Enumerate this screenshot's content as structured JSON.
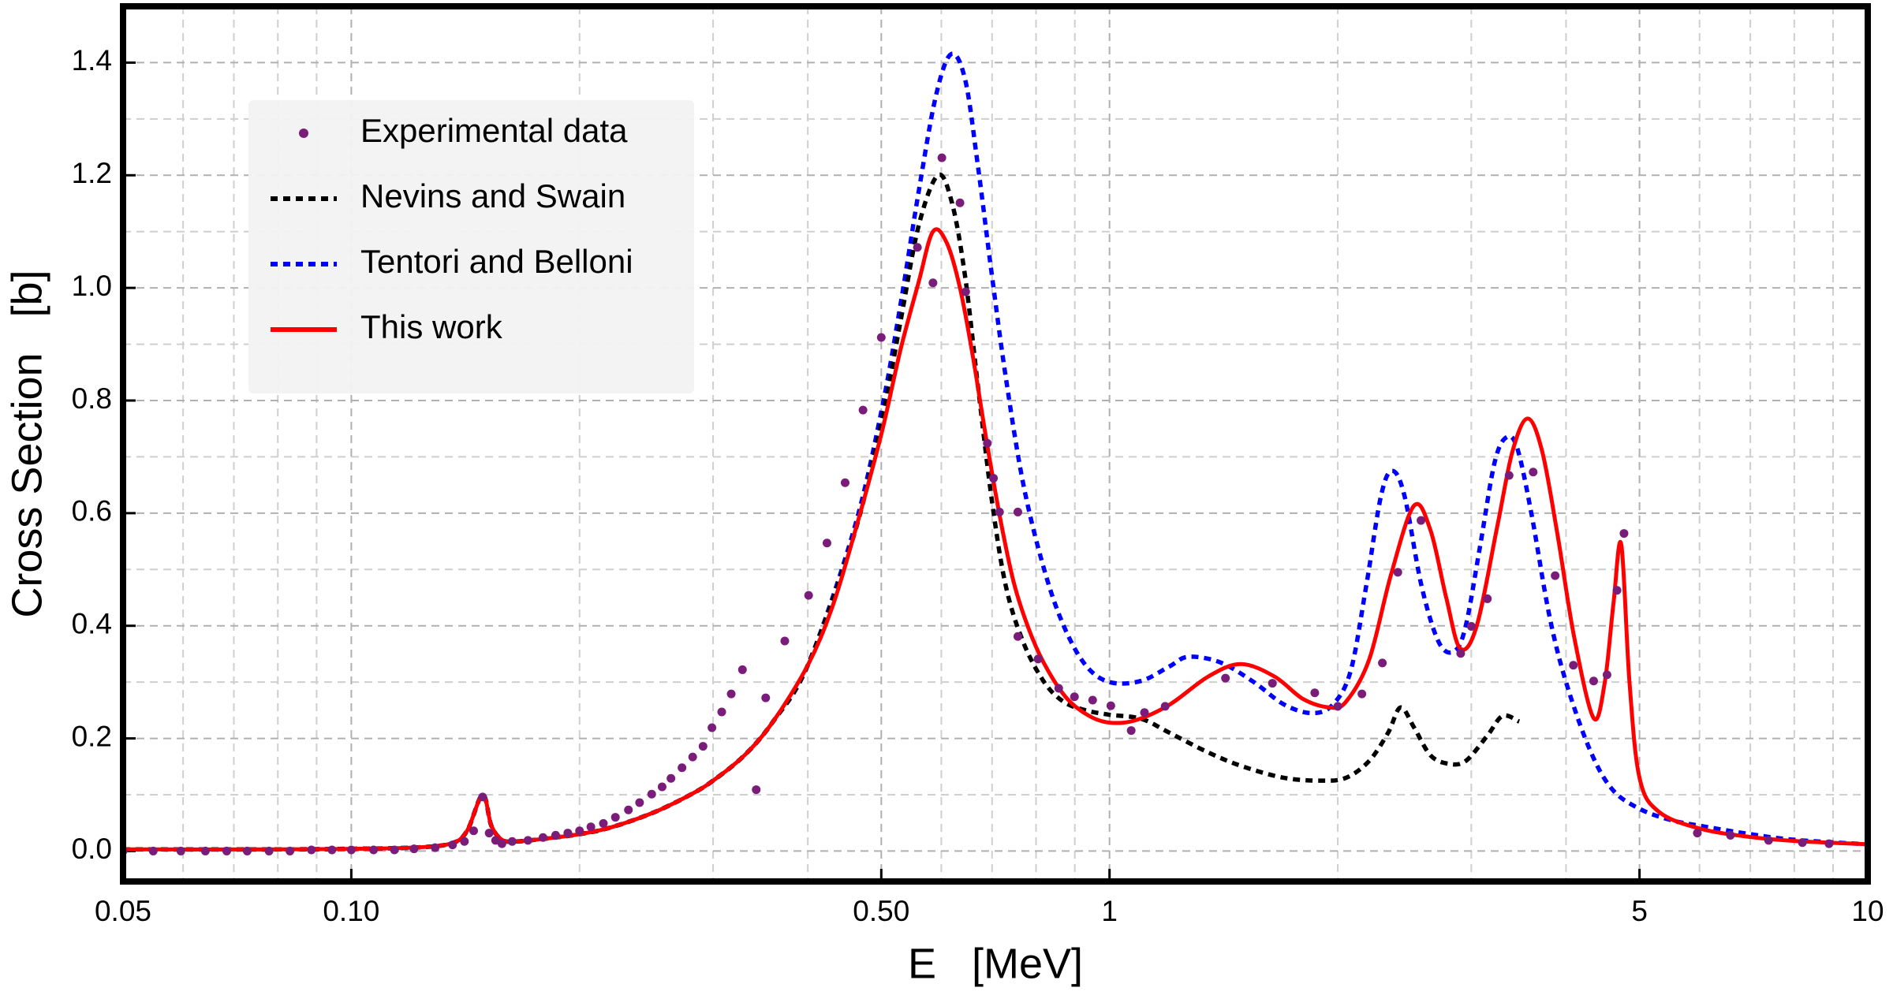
{
  "chart_data": {
    "type": "line",
    "xlabel": "E   [MeV]",
    "ylabel": "Cross Section   [b]",
    "xscale": "log",
    "xlim": [
      0.05,
      10
    ],
    "ylim": [
      -0.054,
      1.5
    ],
    "xticks": [
      0.05,
      {
        "value": 0.1,
        "label": "0.10"
      },
      {
        "value": 0.5,
        "label": "0.50"
      },
      1,
      5,
      10
    ],
    "yticks": [
      {
        "value": 0,
        "label": "0.0"
      },
      0.2,
      0.4,
      0.6,
      0.8,
      {
        "value": 1,
        "label": "1.0"
      },
      1.2,
      1.4
    ],
    "grid": true,
    "minor_grid": true,
    "legend": "upper left",
    "series": [
      {
        "name": "Experimental data",
        "type": "scatter",
        "color": "#7a1d7a",
        "x": [
          0.05,
          0.0548,
          0.0596,
          0.0642,
          0.0685,
          0.0729,
          0.0779,
          0.083,
          0.0886,
          0.0943,
          0.1,
          0.107,
          0.114,
          0.121,
          0.129,
          0.136,
          0.141,
          0.145,
          0.149,
          0.152,
          0.155,
          0.158,
          0.163,
          0.171,
          0.179,
          0.186,
          0.193,
          0.2,
          0.207,
          0.215,
          0.223,
          0.232,
          0.24,
          0.249,
          0.257,
          0.264,
          0.273,
          0.282,
          0.291,
          0.299,
          0.308,
          0.317,
          0.328,
          0.342,
          0.352,
          0.373,
          0.401,
          0.424,
          0.448,
          0.473,
          0.5,
          0.558,
          0.585,
          0.601,
          0.635,
          0.646,
          0.69,
          0.703,
          0.716,
          0.757,
          0.757,
          0.805,
          0.857,
          0.899,
          0.95,
          1.004,
          1.068,
          1.112,
          1.184,
          1.422,
          1.64,
          1.865,
          2.0,
          2.152,
          2.29,
          2.4,
          2.575,
          2.905,
          3.0,
          3.15,
          3.365,
          3.62,
          3.87,
          4.09,
          4.35,
          4.53,
          4.67,
          4.77,
          5.96,
          6.59,
          7.4,
          8.2,
          8.89
        ],
        "values": [
          0,
          0,
          0,
          0,
          0,
          0,
          0,
          0,
          0.002,
          0.002,
          0.002,
          0.002,
          0.002,
          0.004,
          0.006,
          0.011,
          0.017,
          0.036,
          0.096,
          0.032,
          0.019,
          0.013,
          0.017,
          0.019,
          0.024,
          0.028,
          0.032,
          0.036,
          0.043,
          0.049,
          0.06,
          0.073,
          0.086,
          0.101,
          0.114,
          0.129,
          0.148,
          0.167,
          0.186,
          0.219,
          0.247,
          0.279,
          0.322,
          0.109,
          0.272,
          0.373,
          0.454,
          0.547,
          0.654,
          0.783,
          0.912,
          1.072,
          1.009,
          1.231,
          1.151,
          0.993,
          0.724,
          0.662,
          0.602,
          0.602,
          0.381,
          0.341,
          0.289,
          0.274,
          0.268,
          0.258,
          0.214,
          0.246,
          0.257,
          0.307,
          0.298,
          0.281,
          0.257,
          0.279,
          0.334,
          0.495,
          0.587,
          0.351,
          0.399,
          0.448,
          0.667,
          0.673,
          0.489,
          0.33,
          0.302,
          0.313,
          0.463,
          0.564,
          0.032,
          0.028,
          0.019,
          0.015,
          0.013
        ]
      },
      {
        "name": "Nevins and Swain",
        "type": "line",
        "dash": "dotted",
        "color": "#000000",
        "x": [
          0.05,
          0.08,
          0.1,
          0.12,
          0.135,
          0.142,
          0.149,
          0.153,
          0.158,
          0.165,
          0.18,
          0.2,
          0.22,
          0.25,
          0.28,
          0.3,
          0.33,
          0.36,
          0.4,
          0.46,
          0.5,
          0.53,
          0.56,
          0.594,
          0.62,
          0.645,
          0.67,
          0.7,
          0.73,
          0.77,
          0.82,
          0.87,
          0.93,
          1.0,
          1.1,
          1.2,
          1.35,
          1.5,
          1.7,
          1.9,
          2.05,
          2.2,
          2.33,
          2.42,
          2.52,
          2.65,
          2.8,
          2.95,
          3.15,
          3.3,
          3.47
        ],
        "values": [
          0.003,
          0.003,
          0.004,
          0.006,
          0.013,
          0.035,
          0.1,
          0.045,
          0.02,
          0.017,
          0.022,
          0.03,
          0.042,
          0.068,
          0.1,
          0.125,
          0.17,
          0.23,
          0.33,
          0.56,
          0.76,
          0.94,
          1.11,
          1.2,
          1.15,
          1.02,
          0.83,
          0.62,
          0.47,
          0.37,
          0.3,
          0.265,
          0.25,
          0.242,
          0.235,
          0.21,
          0.175,
          0.15,
          0.13,
          0.125,
          0.13,
          0.16,
          0.21,
          0.255,
          0.22,
          0.17,
          0.155,
          0.16,
          0.205,
          0.24,
          0.23
        ]
      },
      {
        "name": "Tentori and Belloni",
        "type": "line",
        "dash": "dotted",
        "color": "#0000ff",
        "x": [
          0.05,
          0.08,
          0.1,
          0.12,
          0.135,
          0.142,
          0.149,
          0.153,
          0.158,
          0.165,
          0.18,
          0.2,
          0.22,
          0.25,
          0.28,
          0.3,
          0.33,
          0.36,
          0.4,
          0.46,
          0.5,
          0.53,
          0.56,
          0.59,
          0.618,
          0.645,
          0.67,
          0.7,
          0.73,
          0.77,
          0.82,
          0.87,
          0.93,
          1.0,
          1.1,
          1.2,
          1.27,
          1.4,
          1.55,
          1.7,
          1.85,
          1.97,
          2.08,
          2.18,
          2.28,
          2.36,
          2.45,
          2.58,
          2.72,
          2.85,
          2.95,
          3.08,
          3.22,
          3.34,
          3.45,
          3.6,
          3.8,
          4.0,
          4.3,
          4.6,
          5.0,
          5.5,
          6,
          7,
          8,
          10
        ],
        "values": [
          0.003,
          0.003,
          0.004,
          0.006,
          0.013,
          0.035,
          0.1,
          0.045,
          0.02,
          0.017,
          0.022,
          0.03,
          0.042,
          0.068,
          0.1,
          0.125,
          0.17,
          0.23,
          0.33,
          0.57,
          0.78,
          0.97,
          1.17,
          1.34,
          1.415,
          1.37,
          1.22,
          1.02,
          0.84,
          0.65,
          0.5,
          0.4,
          0.33,
          0.3,
          0.302,
          0.328,
          0.345,
          0.335,
          0.3,
          0.26,
          0.245,
          0.26,
          0.32,
          0.47,
          0.63,
          0.675,
          0.63,
          0.47,
          0.37,
          0.355,
          0.4,
          0.54,
          0.69,
          0.735,
          0.715,
          0.6,
          0.42,
          0.3,
          0.18,
          0.11,
          0.075,
          0.055,
          0.045,
          0.03,
          0.02,
          0.012
        ]
      },
      {
        "name": "This work",
        "type": "line",
        "dash": "solid",
        "color": "#ff0000",
        "x": [
          0.05,
          0.08,
          0.1,
          0.12,
          0.135,
          0.142,
          0.149,
          0.153,
          0.158,
          0.165,
          0.18,
          0.2,
          0.22,
          0.25,
          0.28,
          0.3,
          0.33,
          0.36,
          0.4,
          0.43,
          0.46,
          0.5,
          0.53,
          0.56,
          0.585,
          0.61,
          0.635,
          0.66,
          0.69,
          0.72,
          0.75,
          0.79,
          0.83,
          0.88,
          0.94,
          1.0,
          1.08,
          1.2,
          1.35,
          1.49,
          1.65,
          1.8,
          1.95,
          2.05,
          2.2,
          2.35,
          2.52,
          2.65,
          2.78,
          2.9,
          3.05,
          3.25,
          3.4,
          3.56,
          3.72,
          3.9,
          4.1,
          4.35,
          4.5,
          4.62,
          4.73,
          4.85,
          5.0,
          5.3,
          6,
          7,
          8,
          10
        ],
        "values": [
          0.003,
          0.003,
          0.004,
          0.006,
          0.013,
          0.035,
          0.1,
          0.045,
          0.02,
          0.017,
          0.022,
          0.03,
          0.042,
          0.068,
          0.1,
          0.125,
          0.17,
          0.23,
          0.33,
          0.43,
          0.56,
          0.74,
          0.89,
          1.01,
          1.1,
          1.08,
          1.0,
          0.88,
          0.72,
          0.58,
          0.47,
          0.38,
          0.32,
          0.27,
          0.24,
          0.228,
          0.232,
          0.26,
          0.31,
          0.332,
          0.31,
          0.27,
          0.255,
          0.265,
          0.34,
          0.49,
          0.613,
          0.57,
          0.45,
          0.36,
          0.4,
          0.58,
          0.71,
          0.768,
          0.71,
          0.56,
          0.38,
          0.236,
          0.3,
          0.44,
          0.545,
          0.3,
          0.13,
          0.07,
          0.04,
          0.025,
          0.018,
          0.012
        ]
      }
    ]
  }
}
